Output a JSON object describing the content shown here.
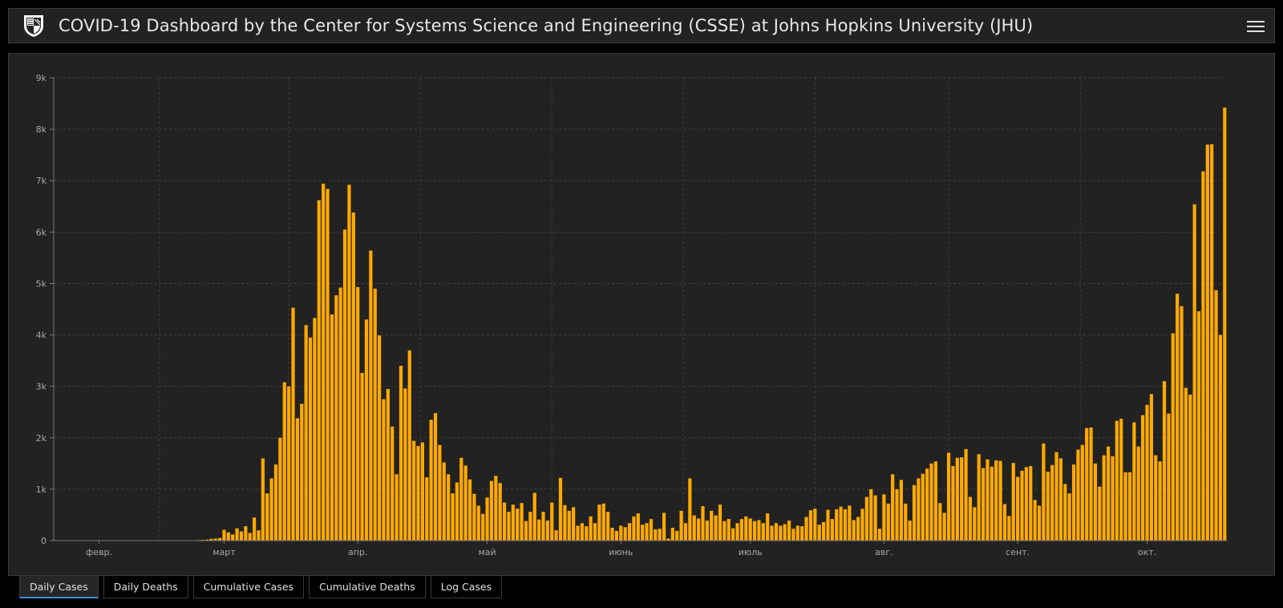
{
  "header": {
    "title": "COVID-19 Dashboard by the Center for Systems Science and Engineering (CSSE) at Johns Hopkins University (JHU)"
  },
  "tabs": [
    {
      "label": "Daily Cases",
      "active": true
    },
    {
      "label": "Daily Deaths",
      "active": false
    },
    {
      "label": "Cumulative Cases",
      "active": false
    },
    {
      "label": "Cumulative Deaths",
      "active": false
    },
    {
      "label": "Log Cases",
      "active": false
    }
  ],
  "colors": {
    "bar": "#ffaa00",
    "panel": "#222222",
    "grid": "#3e3e3e"
  },
  "chart_data": {
    "type": "bar",
    "title": "",
    "xlabel": "",
    "ylabel": "",
    "ylim": [
      0,
      9000
    ],
    "y_ticks": [
      {
        "value": 0,
        "label": "0"
      },
      {
        "value": 1000,
        "label": "1k"
      },
      {
        "value": 2000,
        "label": "2k"
      },
      {
        "value": 3000,
        "label": "3k"
      },
      {
        "value": 4000,
        "label": "4k"
      },
      {
        "value": 5000,
        "label": "5k"
      },
      {
        "value": 6000,
        "label": "6k"
      },
      {
        "value": 7000,
        "label": "7k"
      },
      {
        "value": 8000,
        "label": "8k"
      },
      {
        "value": 9000,
        "label": "9k"
      }
    ],
    "x_ticks": [
      {
        "index": 10,
        "label": "февр."
      },
      {
        "index": 39,
        "label": "март"
      },
      {
        "index": 70,
        "label": "апр."
      },
      {
        "index": 100,
        "label": "май"
      },
      {
        "index": 131,
        "label": "июнь"
      },
      {
        "index": 161,
        "label": "июль"
      },
      {
        "index": 192,
        "label": "авг."
      },
      {
        "index": 223,
        "label": "сент."
      },
      {
        "index": 253,
        "label": "окт."
      }
    ],
    "grid": true,
    "values": [
      0,
      0,
      0,
      0,
      0,
      0,
      0,
      0,
      0,
      0,
      0,
      0,
      0,
      0,
      0,
      0,
      0,
      0,
      0,
      0,
      0,
      0,
      0,
      0,
      0,
      0,
      0,
      0,
      0,
      0,
      0,
      5,
      7,
      10,
      15,
      20,
      35,
      40,
      50,
      210,
      160,
      120,
      240,
      180,
      280,
      150,
      450,
      200,
      1600,
      920,
      1210,
      1480,
      2000,
      3080,
      3000,
      4530,
      2380,
      2660,
      4190,
      3950,
      4330,
      6620,
      6940,
      6840,
      4400,
      4770,
      4920,
      6050,
      6920,
      6380,
      4930,
      3260,
      4300,
      5640,
      4900,
      3990,
      2750,
      2950,
      2220,
      1290,
      3400,
      2960,
      3700,
      1940,
      1840,
      1910,
      1230,
      2350,
      2480,
      1860,
      1520,
      1290,
      920,
      1130,
      1610,
      1460,
      1190,
      910,
      680,
      520,
      840,
      1160,
      1260,
      1120,
      740,
      560,
      700,
      620,
      730,
      380,
      560,
      930,
      410,
      560,
      390,
      740,
      200,
      1220,
      690,
      580,
      650,
      290,
      340,
      280,
      470,
      340,
      700,
      720,
      560,
      250,
      190,
      290,
      260,
      340,
      470,
      530,
      310,
      340,
      420,
      220,
      230,
      540,
      40,
      250,
      190,
      580,
      340,
      1210,
      490,
      430,
      670,
      390,
      580,
      490,
      700,
      380,
      420,
      240,
      340,
      420,
      470,
      430,
      380,
      400,
      340,
      530,
      290,
      340,
      290,
      320,
      390,
      230,
      290,
      280,
      460,
      590,
      620,
      310,
      360,
      600,
      420,
      610,
      660,
      610,
      680,
      400,
      460,
      620,
      850,
      1000,
      880,
      230,
      900,
      720,
      1290,
      1000,
      1180,
      720,
      390,
      1080,
      1210,
      1300,
      1400,
      1500,
      1540,
      730,
      540,
      1710,
      1450,
      1610,
      1620,
      1780,
      850,
      650,
      1680,
      1410,
      1580,
      1440,
      1560,
      1550,
      710,
      480,
      1510,
      1240,
      1360,
      1430,
      1450,
      790,
      680,
      1890,
      1340,
      1470,
      1720,
      1600,
      1100,
      920,
      1480,
      1770,
      1860,
      2190,
      2200,
      1500,
      1050,
      1660,
      1830,
      1640,
      2330,
      2370,
      1330,
      1330,
      2300,
      1830,
      2440,
      2640,
      2850,
      1660,
      1540,
      3100,
      2470,
      4030,
      4800,
      4560,
      2970,
      2840,
      6540,
      4460,
      7180,
      7700,
      7710,
      4870,
      4000,
      8420
    ]
  }
}
